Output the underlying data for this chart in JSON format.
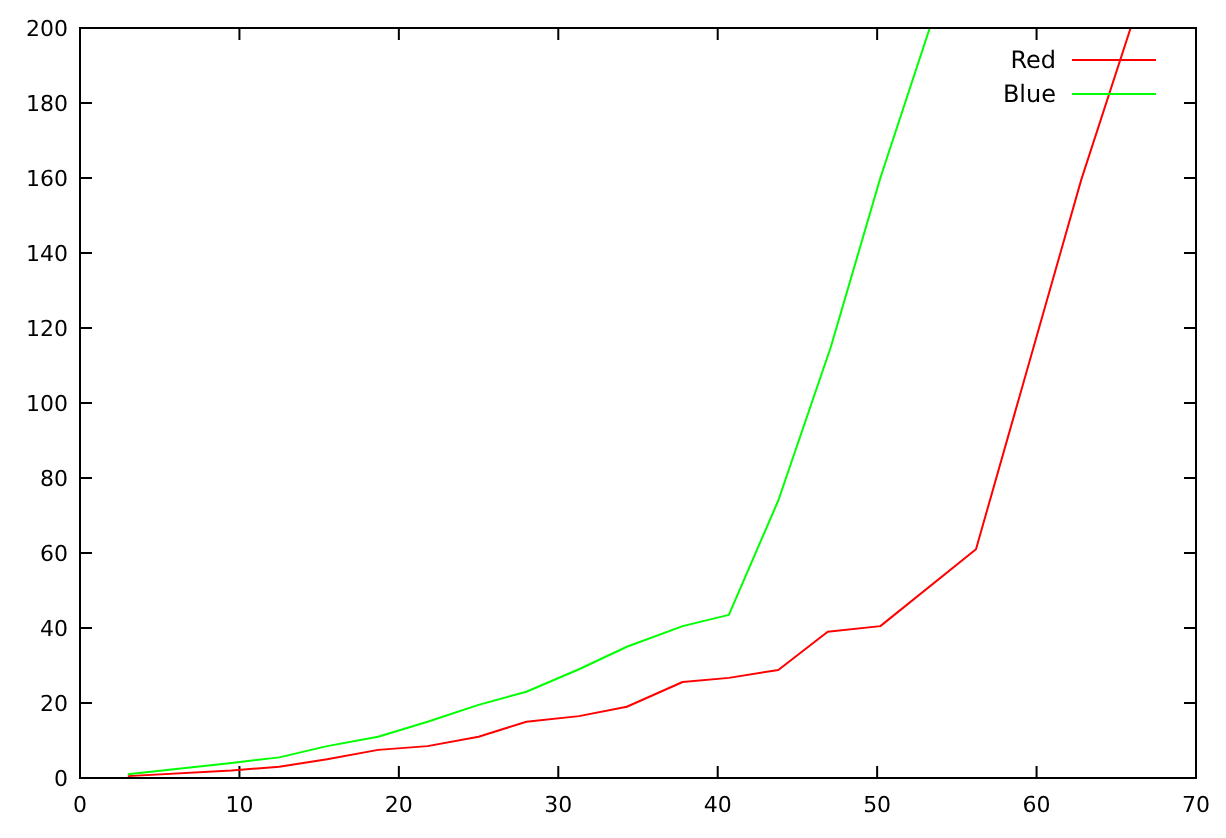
{
  "chart_data": {
    "type": "line",
    "series": [
      {
        "name": "Red",
        "color": "#ff0000",
        "x": [
          3,
          9.5,
          12.5,
          15.5,
          18.7,
          21.8,
          25,
          28,
          31.3,
          34.3,
          37.8,
          40.7,
          43.8,
          46.9,
          50.2,
          56.2,
          62.8,
          65.9
        ],
        "values": [
          0.5,
          2,
          3,
          5,
          7.5,
          8.5,
          11,
          15,
          16.5,
          19,
          25.6,
          26.7,
          28.8,
          39,
          40.5,
          61,
          159.5,
          200
        ]
      },
      {
        "name": "Blue",
        "color": "#00ff00",
        "x": [
          3,
          9.5,
          12.5,
          15.5,
          18.7,
          21.8,
          25,
          28,
          31.3,
          34.3,
          37.8,
          40.7,
          43.8,
          47.1,
          50.2,
          53.3
        ],
        "values": [
          1,
          4,
          5.5,
          8.5,
          11,
          15,
          19.5,
          23,
          29,
          35,
          40.5,
          43.5,
          74,
          115,
          160,
          200
        ]
      }
    ],
    "xlim": [
      0,
      70
    ],
    "xticks": [
      0,
      10,
      20,
      30,
      40,
      50,
      60,
      70
    ],
    "ylim": [
      0,
      200
    ],
    "yticks": [
      0,
      20,
      40,
      60,
      80,
      100,
      120,
      140,
      160,
      180,
      200
    ],
    "grid": false,
    "legend": "top right",
    "marker": "none",
    "line_style": "solid"
  }
}
